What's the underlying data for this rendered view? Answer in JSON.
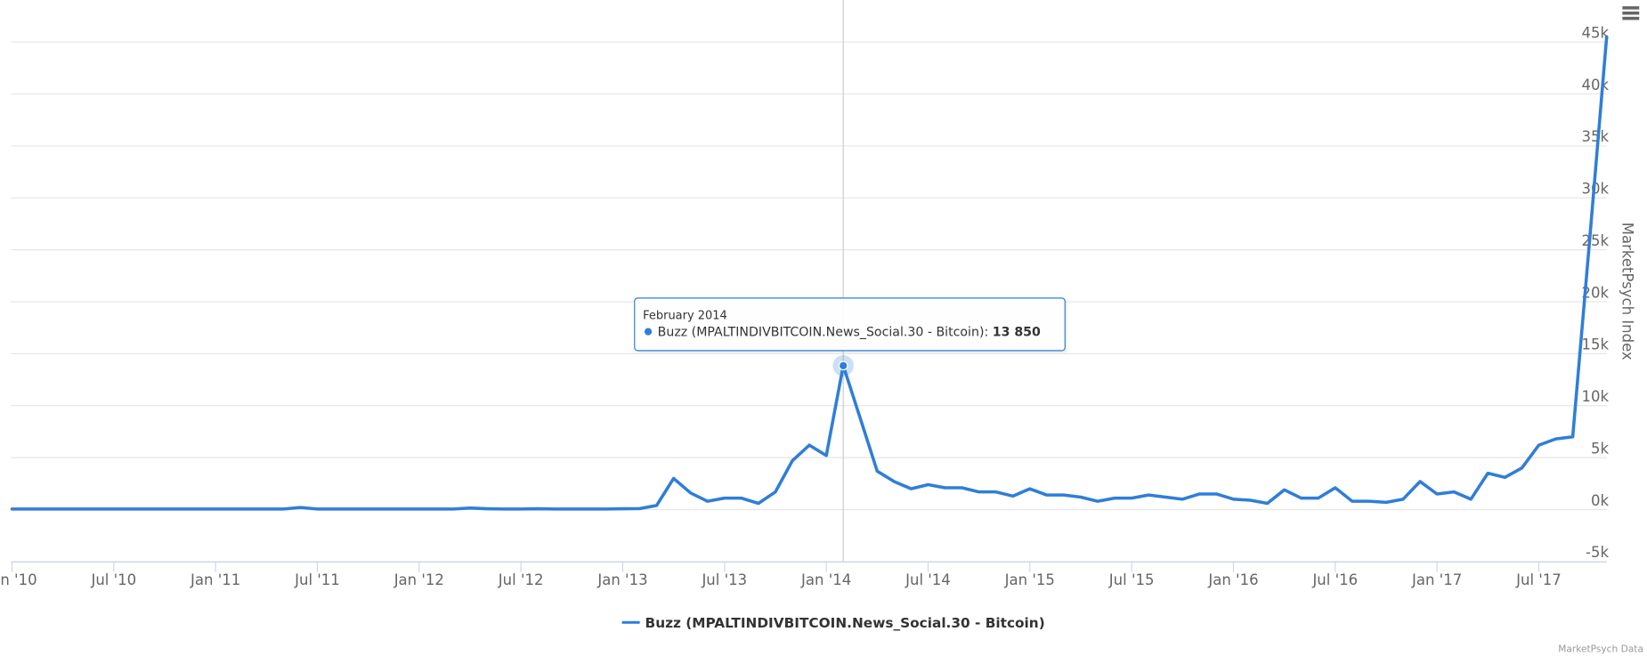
{
  "chart_data": {
    "type": "line",
    "y_axis_title": "MarketPsych Index",
    "credits": "MarketPsych Data",
    "x": [
      "2010-01",
      "2010-02",
      "2010-03",
      "2010-04",
      "2010-05",
      "2010-06",
      "2010-07",
      "2010-08",
      "2010-09",
      "2010-10",
      "2010-11",
      "2010-12",
      "2011-01",
      "2011-02",
      "2011-03",
      "2011-04",
      "2011-05",
      "2011-06",
      "2011-07",
      "2011-08",
      "2011-09",
      "2011-10",
      "2011-11",
      "2011-12",
      "2012-01",
      "2012-02",
      "2012-03",
      "2012-04",
      "2012-05",
      "2012-06",
      "2012-07",
      "2012-08",
      "2012-09",
      "2012-10",
      "2012-11",
      "2012-12",
      "2013-01",
      "2013-02",
      "2013-03",
      "2013-04",
      "2013-05",
      "2013-06",
      "2013-07",
      "2013-08",
      "2013-09",
      "2013-10",
      "2013-11",
      "2013-12",
      "2014-01",
      "2014-02",
      "2014-03",
      "2014-04",
      "2014-05",
      "2014-06",
      "2014-07",
      "2014-08",
      "2014-09",
      "2014-10",
      "2014-11",
      "2014-12",
      "2015-01",
      "2015-02",
      "2015-03",
      "2015-04",
      "2015-05",
      "2015-06",
      "2015-07",
      "2015-08",
      "2015-09",
      "2015-10",
      "2015-11",
      "2015-12",
      "2016-01",
      "2016-02",
      "2016-03",
      "2016-04",
      "2016-05",
      "2016-06",
      "2016-07",
      "2016-08",
      "2016-09",
      "2016-10",
      "2016-11",
      "2016-12",
      "2017-01",
      "2017-02",
      "2017-03",
      "2017-04",
      "2017-05",
      "2017-06",
      "2017-07",
      "2017-08",
      "2017-09",
      "2017-10",
      "2017-11"
    ],
    "series": [
      {
        "name": "Buzz (MPALTINDIVBITCOIN.News_Social.30 - Bitcoin)",
        "color": "#2f7ed8",
        "values": [
          50,
          50,
          50,
          50,
          50,
          50,
          50,
          50,
          50,
          50,
          50,
          50,
          50,
          50,
          50,
          50,
          50,
          200,
          50,
          50,
          50,
          50,
          50,
          50,
          50,
          50,
          50,
          150,
          80,
          50,
          50,
          80,
          50,
          50,
          50,
          50,
          80,
          100,
          400,
          3000,
          1600,
          800,
          1100,
          1100,
          600,
          1700,
          4700,
          6200,
          5200,
          13850,
          8800,
          3700,
          2700,
          2000,
          2400,
          2100,
          2100,
          1700,
          1700,
          1300,
          2000,
          1400,
          1400,
          1200,
          800,
          1100,
          1100,
          1400,
          1200,
          1000,
          1500,
          1500,
          1000,
          900,
          600,
          1900,
          1100,
          1100,
          2100,
          800,
          800,
          700,
          1000,
          2700,
          1500,
          1700,
          1000,
          3500,
          3100,
          4000,
          6200,
          6800,
          7000,
          26000,
          45500
        ]
      }
    ],
    "xlim": [
      "2010-01",
      "2017-11"
    ],
    "xticks": [
      {
        "value": "2010-01",
        "label": "Jan '10"
      },
      {
        "value": "2010-07",
        "label": "Jul '10"
      },
      {
        "value": "2011-01",
        "label": "Jan '11"
      },
      {
        "value": "2011-07",
        "label": "Jul '11"
      },
      {
        "value": "2012-01",
        "label": "Jan '12"
      },
      {
        "value": "2012-07",
        "label": "Jul '12"
      },
      {
        "value": "2013-01",
        "label": "Jan '13"
      },
      {
        "value": "2013-07",
        "label": "Jul '13"
      },
      {
        "value": "2014-01",
        "label": "Jan '14"
      },
      {
        "value": "2014-07",
        "label": "Jul '14"
      },
      {
        "value": "2015-01",
        "label": "Jan '15"
      },
      {
        "value": "2015-07",
        "label": "Jul '15"
      },
      {
        "value": "2016-01",
        "label": "Jan '16"
      },
      {
        "value": "2016-07",
        "label": "Jul '16"
      },
      {
        "value": "2017-01",
        "label": "Jan '17"
      },
      {
        "value": "2017-07",
        "label": "Jul '17"
      }
    ],
    "ylim": [
      -5000,
      45000
    ],
    "yticks": [
      {
        "value": -5000,
        "label": "-5k"
      },
      {
        "value": 0,
        "label": "0k"
      },
      {
        "value": 5000,
        "label": "5k"
      },
      {
        "value": 10000,
        "label": "10k"
      },
      {
        "value": 15000,
        "label": "15k"
      },
      {
        "value": 20000,
        "label": "20k"
      },
      {
        "value": 25000,
        "label": "25k"
      },
      {
        "value": 30000,
        "label": "30k"
      },
      {
        "value": 35000,
        "label": "35k"
      },
      {
        "value": 40000,
        "label": "40k"
      },
      {
        "value": 45000,
        "label": "45k"
      }
    ],
    "grid": true,
    "legend": "bottom",
    "tooltip": {
      "title": "February 2014",
      "series_label": "Buzz (MPALTINDIVBITCOIN.News_Social.30 - Bitcoin):",
      "value": "13 850"
    }
  }
}
